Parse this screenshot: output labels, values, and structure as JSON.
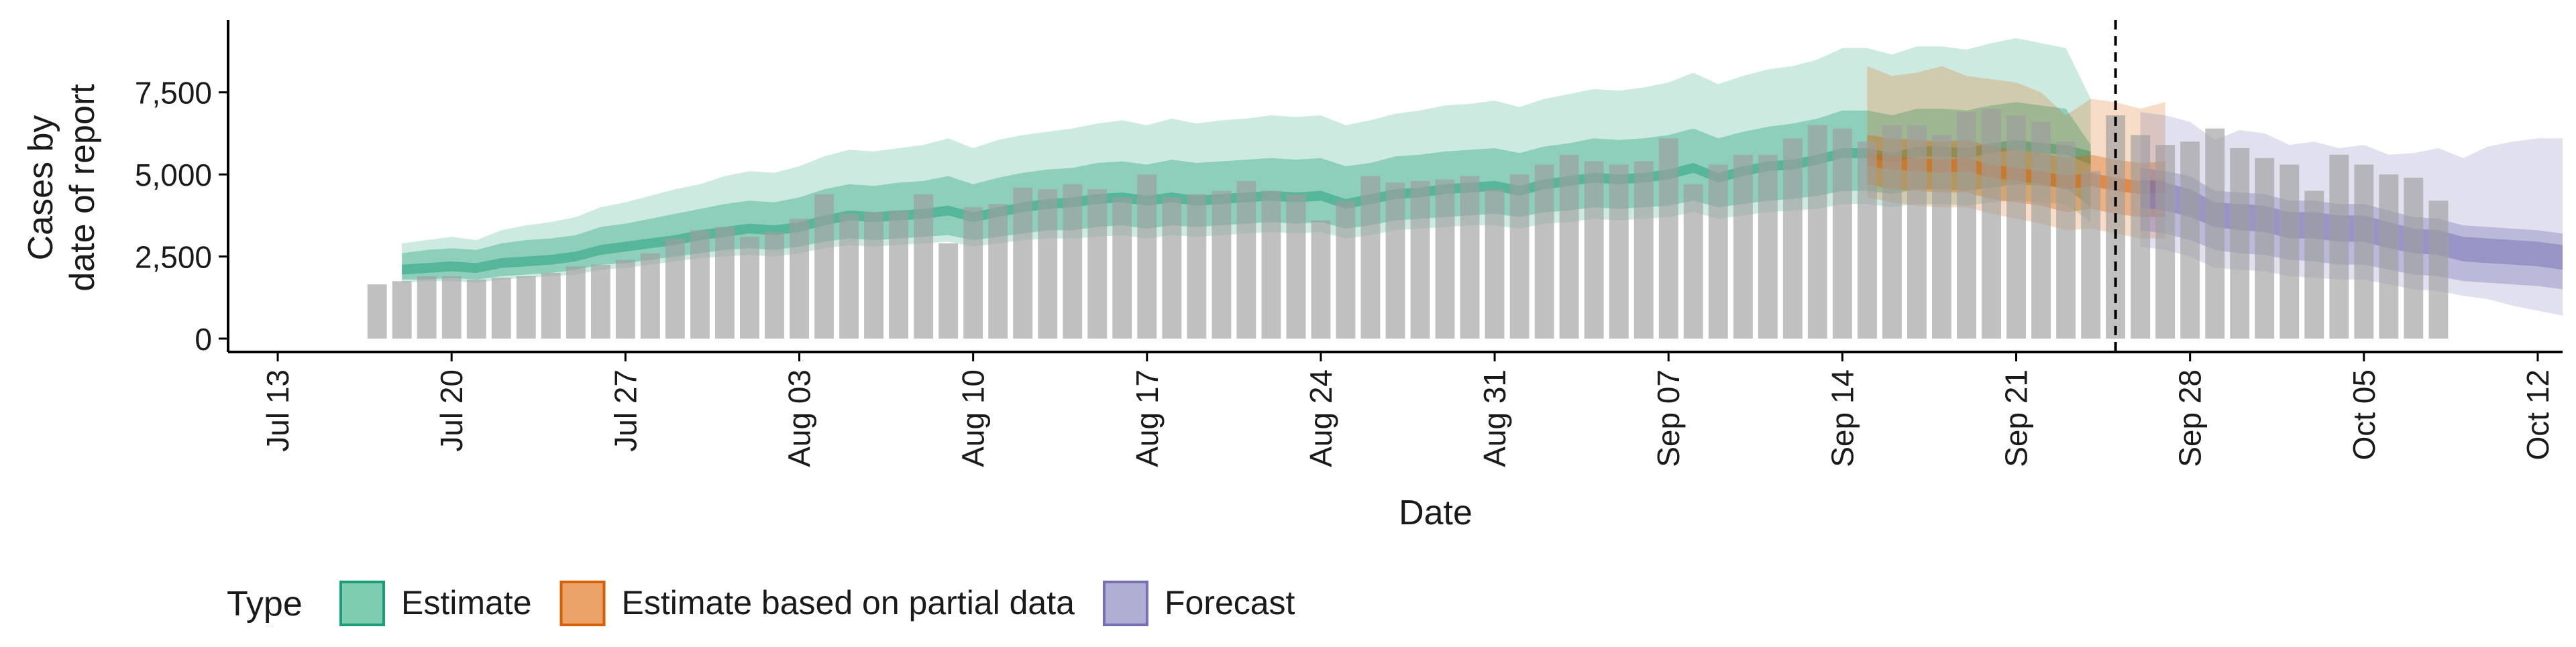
{
  "chart_data": {
    "type": "bar",
    "title": "",
    "xlabel": "Date",
    "ylabel_lines": [
      "Cases by",
      "date of report"
    ],
    "ylim": [
      0,
      9700
    ],
    "y_ticks": [
      0,
      2500,
      5000,
      7500
    ],
    "y_tick_labels": [
      "0",
      "2,500",
      "5,000",
      "7,500"
    ],
    "x_start_date": "2020-07-11",
    "x_ticks": [
      {
        "date": "2020-07-13",
        "label": "Jul 13"
      },
      {
        "date": "2020-07-20",
        "label": "Jul 20"
      },
      {
        "date": "2020-07-27",
        "label": "Jul 27"
      },
      {
        "date": "2020-08-03",
        "label": "Aug 03"
      },
      {
        "date": "2020-08-10",
        "label": "Aug 10"
      },
      {
        "date": "2020-08-17",
        "label": "Aug 17"
      },
      {
        "date": "2020-08-24",
        "label": "Aug 24"
      },
      {
        "date": "2020-08-31",
        "label": "Aug 31"
      },
      {
        "date": "2020-09-07",
        "label": "Sep 07"
      },
      {
        "date": "2020-09-14",
        "label": "Sep 14"
      },
      {
        "date": "2020-09-21",
        "label": "Sep 21"
      },
      {
        "date": "2020-09-28",
        "label": "Sep 28"
      },
      {
        "date": "2020-10-05",
        "label": "Oct 05"
      },
      {
        "date": "2020-10-12",
        "label": "Oct 12"
      }
    ],
    "x_end_date": "2020-10-13",
    "reported_cases": {
      "start_date": "2020-07-17",
      "values": [
        1650,
        1750,
        1900,
        1900,
        1800,
        1850,
        1900,
        2000,
        2200,
        2250,
        2400,
        2600,
        3050,
        3300,
        3400,
        3100,
        3250,
        3650,
        4400,
        3800,
        3850,
        3900,
        4400,
        2900,
        4000,
        4100,
        4600,
        4550,
        4700,
        4550,
        4300,
        5000,
        4300,
        4400,
        4500,
        4800,
        4500,
        4400,
        3600,
        4200,
        4950,
        4750,
        4800,
        4850,
        4950,
        4550,
        5000,
        5300,
        5600,
        5400,
        5300,
        5400,
        6100,
        4700,
        5300,
        5600,
        5600,
        6100,
        6500,
        6400,
        6000,
        6500,
        6500,
        6200,
        6900,
        7000,
        6800,
        6600,
        6000,
        5100,
        6800,
        6200,
        5900,
        6000,
        6400,
        5800,
        5500,
        5300,
        4500,
        5600,
        5300,
        5000,
        4900,
        4200
      ]
    },
    "vline_date": "2020-09-25",
    "legend": {
      "title": "Type",
      "position": "bottom",
      "items": [
        {
          "label": "Estimate",
          "fill": "#7ecdb0",
          "stroke": "#1b9e77"
        },
        {
          "label": "Estimate based on partial data",
          "fill": "#eba36a",
          "stroke": "#d95f02"
        },
        {
          "label": "Forecast",
          "fill": "#b1aed4",
          "stroke": "#7570b3"
        }
      ]
    },
    "series": [
      {
        "name": "Estimate",
        "color": "#1b9e77",
        "start_date": "2020-07-18",
        "median": [
          2100,
          2150,
          2200,
          2150,
          2300,
          2350,
          2400,
          2500,
          2700,
          2800,
          2900,
          3000,
          3150,
          3250,
          3350,
          3300,
          3400,
          3600,
          3750,
          3700,
          3750,
          3800,
          3900,
          3700,
          3850,
          4000,
          4100,
          4150,
          4250,
          4300,
          4200,
          4300,
          4200,
          4250,
          4300,
          4350,
          4300,
          4350,
          4100,
          4250,
          4400,
          4450,
          4550,
          4600,
          4650,
          4500,
          4700,
          4800,
          4900,
          4850,
          4900,
          5000,
          5200,
          4900,
          5100,
          5250,
          5300,
          5450,
          5650,
          5650,
          5500,
          5700,
          5700,
          5650,
          5800,
          5900,
          5800,
          5750,
          5500
        ],
        "p25": [
          1950,
          2000,
          2050,
          2000,
          2150,
          2200,
          2250,
          2350,
          2550,
          2650,
          2750,
          2850,
          3000,
          3100,
          3200,
          3150,
          3250,
          3450,
          3600,
          3550,
          3600,
          3650,
          3750,
          3550,
          3700,
          3850,
          3950,
          4000,
          4100,
          4150,
          4050,
          4150,
          4050,
          4100,
          4150,
          4200,
          4150,
          4200,
          3950,
          4100,
          4250,
          4300,
          4400,
          4450,
          4500,
          4350,
          4550,
          4650,
          4750,
          4700,
          4750,
          4850,
          5050,
          4750,
          4950,
          5100,
          5150,
          5300,
          5500,
          5500,
          5350,
          5550,
          5550,
          5500,
          5650,
          5750,
          5650,
          5600,
          5300
        ],
        "p75": [
          2250,
          2300,
          2350,
          2300,
          2450,
          2500,
          2550,
          2650,
          2850,
          2950,
          3050,
          3150,
          3300,
          3400,
          3500,
          3450,
          3550,
          3750,
          3900,
          3850,
          3900,
          3950,
          4050,
          3850,
          4000,
          4150,
          4250,
          4300,
          4400,
          4450,
          4350,
          4450,
          4350,
          4400,
          4450,
          4500,
          4450,
          4500,
          4250,
          4400,
          4550,
          4600,
          4700,
          4750,
          4800,
          4650,
          4850,
          4950,
          5050,
          5000,
          5050,
          5150,
          5350,
          5050,
          5250,
          5400,
          5450,
          5600,
          5800,
          5800,
          5650,
          5850,
          5850,
          5800,
          5950,
          6050,
          5950,
          5900,
          5700
        ],
        "p5": [
          1800,
          1800,
          1850,
          1800,
          1900,
          1950,
          2000,
          2100,
          2250,
          2300,
          2400,
          2500,
          2600,
          2700,
          2750,
          2700,
          2800,
          2950,
          3050,
          3000,
          3050,
          3100,
          3150,
          3000,
          3100,
          3200,
          3300,
          3300,
          3400,
          3450,
          3350,
          3450,
          3400,
          3450,
          3500,
          3550,
          3500,
          3550,
          3350,
          3450,
          3600,
          3650,
          3700,
          3750,
          3800,
          3700,
          3850,
          3900,
          4000,
          3950,
          4000,
          4050,
          4200,
          4000,
          4100,
          4200,
          4250,
          4350,
          4500,
          4500,
          4400,
          4550,
          4550,
          4500,
          4600,
          4700,
          4650,
          4600,
          4000
        ],
        "p95": [
          2600,
          2700,
          2750,
          2700,
          2900,
          3000,
          3050,
          3150,
          3400,
          3500,
          3650,
          3800,
          3950,
          4100,
          4200,
          4150,
          4300,
          4550,
          4700,
          4650,
          4750,
          4800,
          4950,
          4700,
          4900,
          5050,
          5150,
          5200,
          5350,
          5400,
          5300,
          5450,
          5350,
          5400,
          5450,
          5500,
          5450,
          5500,
          5250,
          5350,
          5550,
          5600,
          5700,
          5750,
          5800,
          5650,
          5850,
          5950,
          6100,
          6050,
          6100,
          6200,
          6400,
          6100,
          6300,
          6450,
          6550,
          6700,
          6950,
          6950,
          6800,
          7000,
          7000,
          6950,
          7100,
          7200,
          7100,
          7000,
          5900
        ],
        "p2_5": [
          1700,
          1750,
          1750,
          1700,
          1800,
          1850,
          1900,
          1950,
          2100,
          2150,
          2250,
          2350,
          2450,
          2500,
          2550,
          2500,
          2600,
          2750,
          2850,
          2800,
          2850,
          2900,
          2950,
          2800,
          2900,
          3000,
          3050,
          3050,
          3100,
          3150,
          3050,
          3150,
          3100,
          3150,
          3200,
          3250,
          3200,
          3250,
          3050,
          3150,
          3300,
          3350,
          3400,
          3450,
          3450,
          3350,
          3500,
          3550,
          3650,
          3600,
          3650,
          3700,
          3850,
          3650,
          3750,
          3850,
          3900,
          3950,
          4100,
          4100,
          4000,
          4100,
          4100,
          4050,
          4150,
          4200,
          4150,
          4100,
          3550
        ],
        "p97_5": [
          2900,
          3000,
          3100,
          3000,
          3300,
          3450,
          3550,
          3700,
          4000,
          4150,
          4350,
          4550,
          4700,
          4950,
          5100,
          5050,
          5250,
          5550,
          5750,
          5700,
          5800,
          5900,
          6100,
          5800,
          6050,
          6200,
          6300,
          6400,
          6550,
          6650,
          6500,
          6700,
          6550,
          6650,
          6700,
          6800,
          6750,
          6800,
          6500,
          6650,
          6850,
          6950,
          7100,
          7150,
          7250,
          7050,
          7300,
          7450,
          7600,
          7550,
          7650,
          7800,
          8100,
          7750,
          8000,
          8200,
          8300,
          8500,
          8850,
          8850,
          8650,
          8900,
          8900,
          8800,
          9000,
          9150,
          9000,
          8850,
          7300
        ]
      },
      {
        "name": "Estimate based on partial data",
        "color": "#d95f02",
        "start_date": "2020-09-15",
        "median": [
          5450,
          5350,
          5300,
          5250,
          5300,
          5100,
          5000,
          4900,
          4750,
          4850,
          4700,
          4600,
          4650
        ],
        "p25": [
          5250,
          5150,
          5100,
          5050,
          5100,
          4900,
          4800,
          4700,
          4550,
          4650,
          4500,
          4400,
          4450
        ],
        "p75": [
          5650,
          5550,
          5500,
          5450,
          5500,
          5300,
          5200,
          5100,
          4950,
          5050,
          4900,
          4800,
          4850
        ],
        "p5": [
          4700,
          4550,
          4500,
          4450,
          4450,
          4250,
          4150,
          4050,
          3850,
          3950,
          3800,
          3700,
          3700
        ],
        "p95": [
          6200,
          6100,
          6050,
          6000,
          6050,
          5850,
          5750,
          5650,
          5500,
          5600,
          5450,
          5350,
          5400
        ],
        "p2_5": [
          4300,
          4150,
          4050,
          4000,
          4000,
          3800,
          3650,
          3500,
          3300,
          3350,
          3200,
          3050,
          3050
        ],
        "p97_5": [
          8300,
          8000,
          8100,
          8300,
          8000,
          7900,
          7800,
          7500,
          6800,
          7300,
          7200,
          7000,
          7200
        ]
      },
      {
        "name": "Forecast",
        "color": "#7570b3",
        "start_date": "2020-09-26",
        "median": [
          4400,
          4300,
          4100,
          3700,
          3650,
          3600,
          3400,
          3400,
          3300,
          3300,
          3100,
          2950,
          2900,
          2700,
          2650,
          2600,
          2550,
          2450
        ],
        "p25": [
          4000,
          3900,
          3700,
          3400,
          3300,
          3250,
          3050,
          3050,
          2950,
          2950,
          2750,
          2600,
          2550,
          2350,
          2300,
          2250,
          2200,
          2100
        ],
        "p75": [
          4850,
          4750,
          4550,
          4150,
          4100,
          4050,
          3850,
          3850,
          3750,
          3750,
          3550,
          3350,
          3300,
          3100,
          3050,
          3000,
          2950,
          2850
        ],
        "p5": [
          3300,
          3200,
          3000,
          2700,
          2600,
          2550,
          2400,
          2350,
          2250,
          2250,
          2100,
          1950,
          1900,
          1750,
          1700,
          1650,
          1600,
          1500
        ],
        "p95": [
          5200,
          5100,
          4950,
          4500,
          4450,
          4400,
          4200,
          4200,
          4100,
          4100,
          3900,
          3700,
          3650,
          3450,
          3400,
          3350,
          3300,
          3200
        ],
        "p2_5": [
          2800,
          2700,
          2500,
          2150,
          2100,
          2050,
          1900,
          1850,
          1800,
          1800,
          1650,
          1500,
          1450,
          1300,
          1200,
          1000,
          850,
          700
        ],
        "p97_5": [
          6900,
          6800,
          6600,
          6050,
          6350,
          6250,
          5900,
          6000,
          5800,
          5900,
          5600,
          5650,
          5800,
          5500,
          5850,
          6000,
          6100,
          6100
        ]
      }
    ]
  }
}
